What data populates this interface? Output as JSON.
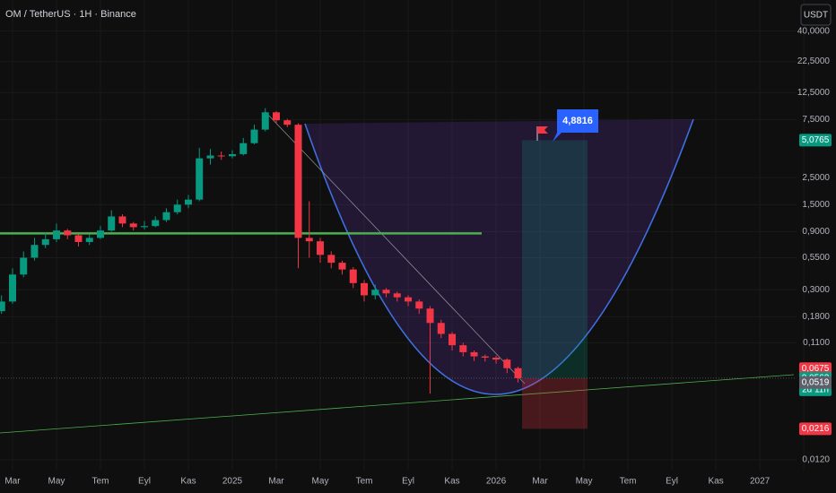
{
  "chart_data": {
    "type": "candlestick",
    "title": "OM / TetherUS · 1H · Binance",
    "currency_button": "USDT",
    "log_scale": true,
    "grid": true,
    "up_color": "#089981",
    "down_color": "#f23645",
    "ylim": [
      0.0098,
      72
    ],
    "yticks": [
      {
        "value": 40,
        "label": "40,0000"
      },
      {
        "value": 22.5,
        "label": "22,5000"
      },
      {
        "value": 12.5,
        "label": "12,5000"
      },
      {
        "value": 7.5,
        "label": "7,5000"
      },
      {
        "value": 2.5,
        "label": "2,5000"
      },
      {
        "value": 1.5,
        "label": "1,5000"
      },
      {
        "value": 0.9,
        "label": "0,9000"
      },
      {
        "value": 0.55,
        "label": "0,5500"
      },
      {
        "value": 0.3,
        "label": "0,3000"
      },
      {
        "value": 0.18,
        "label": "0,1800"
      },
      {
        "value": 0.11,
        "label": "0,1100"
      },
      {
        "value": 0.012,
        "label": "0,0120"
      }
    ],
    "xlim": [
      -0.57,
      35.67
    ],
    "xticks": [
      {
        "value": 0,
        "label": "Mar"
      },
      {
        "value": 2,
        "label": "May"
      },
      {
        "value": 4,
        "label": "Tem"
      },
      {
        "value": 6,
        "label": "Eyl"
      },
      {
        "value": 8,
        "label": "Kas"
      },
      {
        "value": 10,
        "label": "2025"
      },
      {
        "value": 12,
        "label": "Mar"
      },
      {
        "value": 14,
        "label": "May"
      },
      {
        "value": 16,
        "label": "Tem"
      },
      {
        "value": 18,
        "label": "Eyl"
      },
      {
        "value": 20,
        "label": "Kas"
      },
      {
        "value": 22,
        "label": "2026"
      },
      {
        "value": 24,
        "label": "Mar"
      },
      {
        "value": 26,
        "label": "May"
      },
      {
        "value": 28,
        "label": "Tem"
      },
      {
        "value": 30,
        "label": "Eyl"
      },
      {
        "value": 32,
        "label": "Kas"
      },
      {
        "value": 34,
        "label": "2027"
      },
      {
        "value": 36,
        "label": "Mar"
      }
    ],
    "x": [
      -0.5,
      0,
      0.5,
      1,
      1.5,
      2,
      2.5,
      3,
      3.5,
      4,
      4.5,
      5,
      5.5,
      6,
      6.5,
      7,
      7.5,
      8,
      8.5,
      9,
      9.5,
      10,
      10.5,
      11,
      11.5,
      12,
      12.5,
      13,
      13.5,
      14,
      14.5,
      15,
      15.5,
      16,
      16.5,
      17,
      17.5,
      18,
      18.5,
      19,
      19.5,
      20,
      20.5,
      21,
      21.5,
      22,
      22.5,
      23
    ],
    "open": [
      0.2,
      0.24,
      0.4,
      0.55,
      0.7,
      0.78,
      0.92,
      0.84,
      0.74,
      0.8,
      0.92,
      1.2,
      1.05,
      0.98,
      1.0,
      1.12,
      1.3,
      1.5,
      1.65,
      3.6,
      3.8,
      3.75,
      3.9,
      4.8,
      6.2,
      8.6,
      7.4,
      6.8,
      0.8,
      0.75,
      0.58,
      0.5,
      0.44,
      0.34,
      0.27,
      0.3,
      0.28,
      0.26,
      0.24,
      0.21,
      0.16,
      0.13,
      0.105,
      0.092,
      0.085,
      0.083,
      0.08,
      0.068
    ],
    "high": [
      0.27,
      0.45,
      0.62,
      0.8,
      0.88,
      1.05,
      0.95,
      0.86,
      0.85,
      1.0,
      1.35,
      1.25,
      1.08,
      1.1,
      1.2,
      1.4,
      1.65,
      1.8,
      4.4,
      4.3,
      4.1,
      4.2,
      5.3,
      6.8,
      9.3,
      8.8,
      7.6,
      7.0,
      1.6,
      0.8,
      0.62,
      0.52,
      0.46,
      0.36,
      0.33,
      0.31,
      0.29,
      0.27,
      0.25,
      0.22,
      0.17,
      0.135,
      0.11,
      0.095,
      0.088,
      0.086,
      0.082,
      0.07
    ],
    "low": [
      0.19,
      0.23,
      0.38,
      0.52,
      0.66,
      0.74,
      0.78,
      0.68,
      0.7,
      0.78,
      0.9,
      0.98,
      0.92,
      0.94,
      0.98,
      1.08,
      1.25,
      1.4,
      1.6,
      3.2,
      3.5,
      3.6,
      3.8,
      4.7,
      6.0,
      7.0,
      6.5,
      0.45,
      0.55,
      0.5,
      0.45,
      0.4,
      0.31,
      0.24,
      0.25,
      0.26,
      0.24,
      0.22,
      0.19,
      0.042,
      0.12,
      0.095,
      0.085,
      0.078,
      0.077,
      0.074,
      0.062,
      0.0519
    ],
    "close": [
      0.24,
      0.4,
      0.55,
      0.7,
      0.78,
      0.92,
      0.84,
      0.74,
      0.8,
      0.92,
      1.2,
      1.05,
      0.98,
      1.0,
      1.12,
      1.3,
      1.5,
      1.65,
      3.6,
      3.8,
      3.75,
      3.9,
      4.8,
      6.2,
      8.6,
      7.4,
      6.8,
      0.8,
      0.75,
      0.58,
      0.5,
      0.44,
      0.34,
      0.27,
      0.3,
      0.28,
      0.26,
      0.24,
      0.21,
      0.16,
      0.13,
      0.105,
      0.092,
      0.085,
      0.083,
      0.08,
      0.068,
      0.0563
    ],
    "support_level": 0.87,
    "price_labels": [
      {
        "value": 5.0765,
        "label": "5,0765",
        "color": "#089981"
      },
      {
        "value": 0.0675,
        "label": "0,0675",
        "color": "#f23645"
      },
      {
        "value": 0.0563,
        "label": "0,0563",
        "color": "#089981"
      },
      {
        "value": 0.0519,
        "label": "0,0519",
        "color": "#5d606b"
      },
      {
        "value": 0.0216,
        "label": "0,0216",
        "color": "#f23645"
      }
    ],
    "countdown": "2d 11h",
    "target_callout": "4,8816"
  }
}
